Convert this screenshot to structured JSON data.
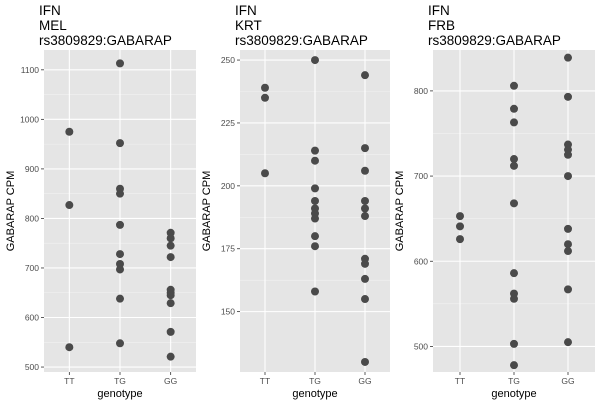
{
  "colors": {
    "panel_background": "#e5e5e5",
    "grid_major": "#ffffff",
    "grid_minor": "#f2f2f2",
    "point": "#4a4a4a",
    "tick_text": "#4d4d4d"
  },
  "chart_data": [
    {
      "type": "scatter",
      "title": [
        "IFN",
        "MEL",
        "rs3809829:GABARAP"
      ],
      "xlabel": "genotype",
      "ylabel": "GABARAP CPM",
      "categories": [
        "TT",
        "TG",
        "GG"
      ],
      "ylim": [
        490,
        1140
      ],
      "yticks": [
        500,
        600,
        700,
        800,
        900,
        1000,
        1100
      ],
      "grid": true,
      "series": [
        {
          "category": "TT",
          "values": [
            975,
            827,
            540
          ]
        },
        {
          "category": "TG",
          "values": [
            1113,
            952,
            860,
            850,
            787,
            728,
            708,
            697,
            638,
            548
          ]
        },
        {
          "category": "GG",
          "values": [
            771,
            760,
            745,
            722,
            656,
            650,
            645,
            629,
            571,
            521
          ]
        }
      ]
    },
    {
      "type": "scatter",
      "title": [
        "IFN",
        "KRT",
        "rs3809829:GABARAP"
      ],
      "xlabel": "genotype",
      "ylabel": "GABARAP CPM",
      "categories": [
        "TT",
        "TG",
        "GG"
      ],
      "ylim": [
        126,
        254
      ],
      "yticks": [
        150,
        175,
        200,
        225,
        250
      ],
      "grid": true,
      "series": [
        {
          "category": "TT",
          "values": [
            239,
            235,
            205
          ]
        },
        {
          "category": "TG",
          "values": [
            250,
            214,
            210,
            199,
            194,
            191,
            189,
            187,
            180,
            176,
            158
          ]
        },
        {
          "category": "GG",
          "values": [
            244,
            215,
            206,
            194,
            191,
            188,
            171,
            169,
            163,
            155,
            130
          ]
        }
      ]
    },
    {
      "type": "scatter",
      "title": [
        "IFN",
        "FRB",
        "rs3809829:GABARAP"
      ],
      "xlabel": "genotype",
      "ylabel": "GABARAP CPM",
      "categories": [
        "TT",
        "TG",
        "GG"
      ],
      "ylim": [
        470,
        848
      ],
      "yticks": [
        500,
        600,
        700,
        800
      ],
      "grid": true,
      "series": [
        {
          "category": "TT",
          "values": [
            653,
            641,
            626
          ]
        },
        {
          "category": "TG",
          "values": [
            806,
            779,
            763,
            720,
            712,
            668,
            586,
            562,
            556,
            503,
            478
          ]
        },
        {
          "category": "GG",
          "values": [
            839,
            793,
            737,
            731,
            725,
            700,
            638,
            620,
            612,
            567,
            505
          ]
        }
      ]
    }
  ]
}
